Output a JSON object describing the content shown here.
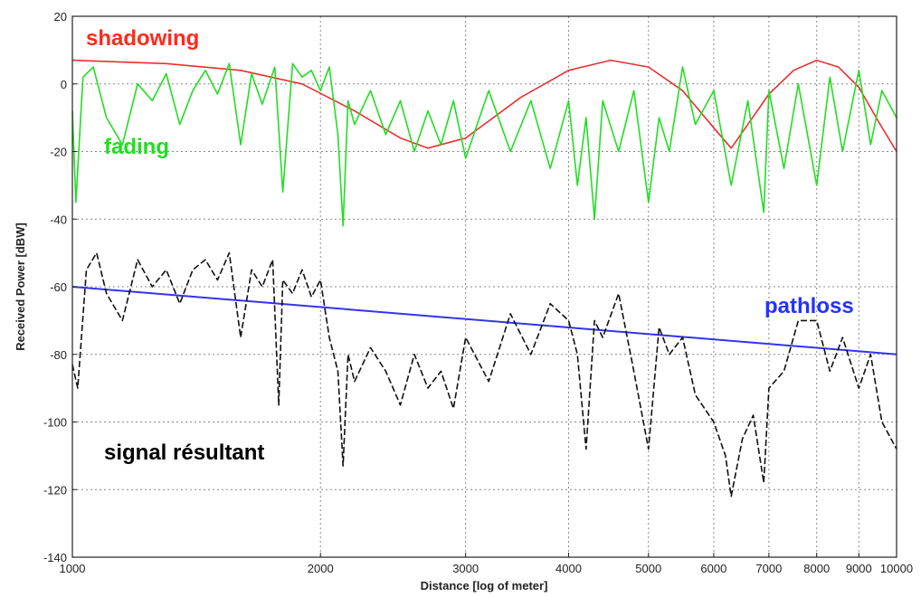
{
  "chart_data": {
    "type": "line",
    "xlabel": "Distance [log of meter]",
    "ylabel": "Received Power [dBW]",
    "xscale": "log",
    "xlim": [
      1000,
      10000
    ],
    "ylim": [
      -140,
      20
    ],
    "grid": true,
    "x_ticks": [
      1000,
      2000,
      3000,
      4000,
      5000,
      6000,
      7000,
      8000,
      9000,
      10000
    ],
    "x_tick_labels": [
      "1000",
      "2000",
      "3000",
      "4000",
      "5000",
      "6000",
      "7000",
      "8000",
      "9000",
      "10000"
    ],
    "y_ticks": [
      20,
      0,
      -20,
      -40,
      -60,
      -80,
      -100,
      -120,
      -140
    ],
    "y_tick_labels": [
      "20",
      "0",
      "-20",
      "-40",
      "-60",
      "-80",
      "-100",
      "-120",
      "-140"
    ],
    "annotations": [
      {
        "text": "shadowing",
        "color": "#ff2a1a"
      },
      {
        "text": "fading",
        "color": "#22dd22"
      },
      {
        "text": "pathloss",
        "color": "#2233ff"
      },
      {
        "text": "signal résultant",
        "color": "#000000"
      }
    ],
    "series": [
      {
        "color": "#e83030",
        "style": "solid",
        "x": [
          1000,
          1300,
          1600,
          1900,
          2200,
          2500,
          2700,
          3000,
          3500,
          4000,
          4500,
          5000,
          5500,
          6000,
          6300,
          6600,
          7000,
          7500,
          8000,
          8500,
          9000,
          9500,
          10000
        ],
        "y": [
          7,
          6,
          4,
          0,
          -8,
          -16,
          -19,
          -16,
          -4,
          4,
          7,
          5,
          -2,
          -13,
          -19,
          -12,
          -3,
          4,
          7,
          5,
          -1,
          -11,
          -20
        ]
      },
      {
        "color": "#22dd22",
        "style": "solid",
        "x": [
          1000,
          1010,
          1030,
          1060,
          1100,
          1150,
          1200,
          1250,
          1300,
          1350,
          1400,
          1450,
          1500,
          1550,
          1600,
          1650,
          1700,
          1760,
          1800,
          1850,
          1900,
          1950,
          2000,
          2050,
          2100,
          2130,
          2160,
          2200,
          2300,
          2400,
          2500,
          2600,
          2700,
          2800,
          2900,
          3000,
          3200,
          3400,
          3600,
          3800,
          4000,
          4100,
          4200,
          4300,
          4400,
          4600,
          4800,
          5000,
          5150,
          5300,
          5500,
          5700,
          6000,
          6300,
          6600,
          6900,
          7000,
          7300,
          7600,
          8000,
          8300,
          8600,
          9000,
          9300,
          9600,
          10000
        ],
        "y": [
          -8,
          -35,
          2,
          5,
          -10,
          -18,
          0,
          -5,
          3,
          -12,
          -2,
          4,
          -3,
          6,
          -18,
          3,
          -6,
          5,
          -32,
          6,
          2,
          4,
          -2,
          5,
          -15,
          -42,
          -5,
          -12,
          -2,
          -15,
          -5,
          -20,
          -8,
          -18,
          -5,
          -22,
          -2,
          -20,
          -5,
          -25,
          -5,
          -30,
          -10,
          -40,
          -5,
          -20,
          -2,
          -35,
          -10,
          -20,
          5,
          -12,
          -2,
          -30,
          -5,
          -38,
          -2,
          -25,
          0,
          -30,
          2,
          -20,
          4,
          -18,
          -2,
          -10
        ]
      },
      {
        "color": "#3333ee",
        "style": "solid",
        "x": [
          1000,
          10000
        ],
        "y": [
          -60,
          -80
        ]
      },
      {
        "color": "#111111",
        "style": "dashed",
        "x": [
          1000,
          1015,
          1040,
          1070,
          1100,
          1150,
          1200,
          1250,
          1300,
          1350,
          1400,
          1450,
          1500,
          1550,
          1600,
          1650,
          1700,
          1750,
          1780,
          1800,
          1850,
          1900,
          1950,
          2000,
          2050,
          2100,
          2130,
          2160,
          2200,
          2300,
          2400,
          2500,
          2600,
          2700,
          2800,
          2900,
          3000,
          3200,
          3400,
          3600,
          3800,
          4000,
          4100,
          4200,
          4300,
          4400,
          4600,
          4800,
          5000,
          5150,
          5300,
          5500,
          5700,
          6000,
          6200,
          6300,
          6500,
          6700,
          6900,
          7000,
          7300,
          7600,
          8000,
          8300,
          8600,
          9000,
          9300,
          9600,
          10000
        ],
        "y": [
          -83,
          -90,
          -55,
          -50,
          -62,
          -70,
          -52,
          -60,
          -55,
          -65,
          -55,
          -52,
          -58,
          -50,
          -75,
          -55,
          -60,
          -52,
          -95,
          -58,
          -62,
          -55,
          -63,
          -58,
          -75,
          -85,
          -113,
          -80,
          -88,
          -78,
          -85,
          -95,
          -80,
          -90,
          -85,
          -96,
          -75,
          -88,
          -68,
          -80,
          -65,
          -70,
          -80,
          -108,
          -70,
          -75,
          -62,
          -85,
          -108,
          -72,
          -80,
          -75,
          -92,
          -100,
          -110,
          -122,
          -105,
          -98,
          -118,
          -90,
          -85,
          -70,
          -70,
          -85,
          -75,
          -90,
          -80,
          -100,
          -108
        ]
      }
    ]
  }
}
